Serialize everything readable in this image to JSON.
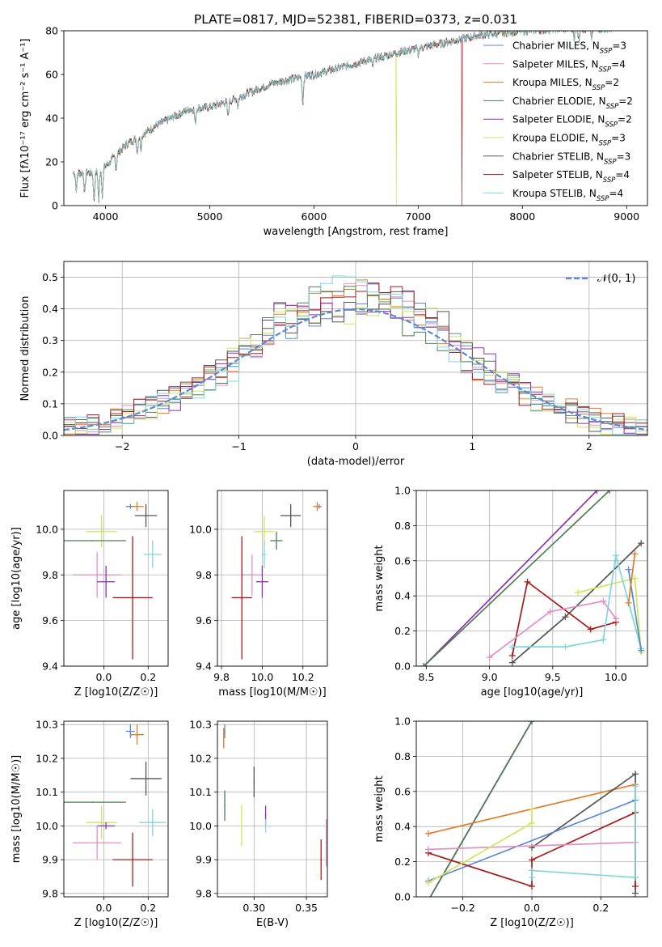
{
  "figure": {
    "title": "PLATE=0817, MJD=52381, FIBERID=0373, z=0.031"
  },
  "colors": {
    "Chabrier MILES": "#5b88d6",
    "Salpeter MILES": "#e48fc3",
    "Kroupa MILES": "#e07c28",
    "Chabrier ELODIE": "#4e7d53",
    "Salpeter ELODIE": "#8f31ac",
    "Kroupa ELODIE": "#cfe65a",
    "Chabrier STELIB": "#555555",
    "Salpeter STELIB": "#a81a1a",
    "Kroupa STELIB": "#7ed7db",
    "normal_curve": "#5b88d6"
  },
  "chart_data": [
    {
      "id": "spectrum",
      "type": "line",
      "xlabel": "wavelength [Angstrom, rest frame]",
      "ylabel": "Flux [fλ10⁻¹⁷ erg cm⁻² s⁻¹ A⁻¹]",
      "xlim": [
        3600,
        9200
      ],
      "ylim": [
        0,
        80
      ],
      "xticks": [
        4000,
        5000,
        6000,
        7000,
        8000,
        9000
      ],
      "yticks": [
        0,
        20,
        40,
        60,
        80
      ],
      "legend_position": "top-right",
      "legend": [
        {
          "series": "Chabrier MILES",
          "label": "Chabrier MILES, N_SSP=3"
        },
        {
          "series": "Salpeter MILES",
          "label": "Salpeter MILES, N_SSP=4"
        },
        {
          "series": "Kroupa MILES",
          "label": "Kroupa MILES, N_SSP=2"
        },
        {
          "series": "Chabrier ELODIE",
          "label": "Chabrier ELODIE, N_SSP=2"
        },
        {
          "series": "Salpeter ELODIE",
          "label": "Salpeter ELODIE, N_SSP=2"
        },
        {
          "series": "Kroupa ELODIE",
          "label": "Kroupa ELODIE, N_SSP=3"
        },
        {
          "series": "Chabrier STELIB",
          "label": "Chabrier STELIB, N_SSP=3"
        },
        {
          "series": "Salpeter STELIB",
          "label": "Salpeter STELIB, N_SSP=4"
        },
        {
          "series": "Kroupa STELIB",
          "label": "Kroupa STELIB, N_SSP=4"
        }
      ],
      "continuum": [
        [
          3700,
          15
        ],
        [
          3900,
          15
        ],
        [
          4000,
          18
        ],
        [
          4200,
          28
        ],
        [
          4500,
          37
        ],
        [
          4800,
          44
        ],
        [
          5000,
          45
        ],
        [
          5200,
          48
        ],
        [
          5600,
          56
        ],
        [
          6000,
          60
        ],
        [
          6400,
          65
        ],
        [
          6800,
          70
        ],
        [
          7200,
          74
        ],
        [
          7600,
          78
        ],
        [
          8000,
          80
        ],
        [
          8400,
          81
        ],
        [
          8800,
          81
        ]
      ],
      "dips": [
        [
          3720,
          8
        ],
        [
          3800,
          9
        ],
        [
          3890,
          12
        ],
        [
          3935,
          14
        ],
        [
          3970,
          12
        ],
        [
          4101,
          6
        ],
        [
          4304,
          7
        ],
        [
          4340,
          6
        ],
        [
          4861,
          7
        ],
        [
          5175,
          7
        ],
        [
          5270,
          4
        ],
        [
          5893,
          12
        ],
        [
          6563,
          4
        ],
        [
          7000,
          3
        ],
        [
          8498,
          4
        ],
        [
          8542,
          5
        ],
        [
          8662,
          5
        ]
      ],
      "spikes": [
        {
          "series": "Kroupa ELODIE",
          "x": 6790,
          "y": 0
        },
        {
          "series": "Kroupa MILES",
          "x": 6800,
          "y": 68
        },
        {
          "series": "Salpeter STELIB",
          "x": 7420,
          "y": 0
        }
      ]
    },
    {
      "id": "residuals",
      "type": "step-histogram",
      "xlabel": "(data-model)/error",
      "ylabel": "Normed distribution",
      "xlim": [
        -2.5,
        2.5
      ],
      "ylim": [
        0,
        0.55
      ],
      "xticks": [
        -2,
        -1,
        0,
        1,
        2
      ],
      "yticks": [
        0.0,
        0.1,
        0.2,
        0.3,
        0.4,
        0.5
      ],
      "bins": {
        "start": -2.5,
        "width": 0.1,
        "count": 50
      },
      "normal_label": "𝒩(0, 1)",
      "legend_position": "top-right"
    },
    {
      "id": "age_vs_Z",
      "type": "errorbar",
      "xlabel": "Z [log10(Z/Z☉)]",
      "ylabel": "age  [log10(age/yr)]",
      "xlim": [
        -0.18,
        0.29
      ],
      "ylim": [
        9.4,
        10.17
      ],
      "xticks": [
        0.0,
        0.2
      ],
      "yticks": [
        9.4,
        9.6,
        9.8,
        10.0
      ],
      "points": [
        {
          "series": "Chabrier MILES",
          "x": 0.12,
          "y": 10.1,
          "xerr": 0.02,
          "yerr": 0.01
        },
        {
          "series": "Kroupa MILES",
          "x": 0.15,
          "y": 10.1,
          "xerr": 0.03,
          "yerr": 0.02
        },
        {
          "series": "Kroupa ELODIE",
          "x": -0.01,
          "y": 9.99,
          "xerr": 0.07,
          "yerr": 0.07
        },
        {
          "series": "Chabrier ELODIE",
          "x": -0.05,
          "y": 9.95,
          "xerr": 0.15,
          "yerr": 0.0
        },
        {
          "series": "Chabrier STELIB",
          "x": 0.19,
          "y": 10.06,
          "xerr": 0.05,
          "yerr": 0.05
        },
        {
          "series": "Kroupa STELIB",
          "x": 0.22,
          "y": 9.89,
          "xerr": 0.04,
          "yerr": 0.06
        },
        {
          "series": "Salpeter MILES",
          "x": -0.03,
          "y": 9.8,
          "xerr": 0.11,
          "yerr": 0.1
        },
        {
          "series": "Salpeter ELODIE",
          "x": 0.01,
          "y": 9.77,
          "xerr": 0.04,
          "yerr": 0.07
        },
        {
          "series": "Salpeter STELIB",
          "x": 0.13,
          "y": 9.7,
          "xerr": 0.09,
          "yerr": 0.27
        }
      ]
    },
    {
      "id": "age_vs_mass",
      "type": "errorbar",
      "xlabel": "mass [log10(M/M☉)]",
      "ylabel": "",
      "xlim": [
        9.78,
        10.32
      ],
      "ylim": [
        9.4,
        10.17
      ],
      "xticks": [
        9.8,
        10.0,
        10.2
      ],
      "yticks": [
        9.4,
        9.6,
        9.8,
        10.0
      ],
      "points": [
        {
          "series": "Chabrier MILES",
          "x": 10.28,
          "y": 10.1,
          "xerr": 0.01,
          "yerr": 0.01
        },
        {
          "series": "Kroupa MILES",
          "x": 10.27,
          "y": 10.1,
          "xerr": 0.02,
          "yerr": 0.02
        },
        {
          "series": "Kroupa ELODIE",
          "x": 10.01,
          "y": 9.99,
          "xerr": 0.05,
          "yerr": 0.07
        },
        {
          "series": "Chabrier ELODIE",
          "x": 10.07,
          "y": 9.95,
          "xerr": 0.03,
          "yerr": 0.04
        },
        {
          "series": "Chabrier STELIB",
          "x": 10.14,
          "y": 10.06,
          "xerr": 0.05,
          "yerr": 0.05
        },
        {
          "series": "Kroupa STELIB",
          "x": 10.01,
          "y": 9.89,
          "xerr": 0.01,
          "yerr": 0.06
        },
        {
          "series": "Salpeter MILES",
          "x": 9.95,
          "y": 9.8,
          "xerr": 0.05,
          "yerr": 0.09
        },
        {
          "series": "Salpeter ELODIE",
          "x": 10.0,
          "y": 9.77,
          "xerr": 0.03,
          "yerr": 0.07
        },
        {
          "series": "Salpeter STELIB",
          "x": 9.9,
          "y": 9.7,
          "xerr": 0.05,
          "yerr": 0.27
        }
      ]
    },
    {
      "id": "weight_vs_age",
      "type": "line",
      "xlabel": "age  [log10(age/yr)]",
      "ylabel": "mass weight",
      "xlim": [
        8.42,
        10.25
      ],
      "ylim": [
        0,
        1
      ],
      "xticks": [
        8.5,
        9.0,
        9.5,
        10.0
      ],
      "yticks": [
        0.0,
        0.2,
        0.4,
        0.6,
        0.8,
        1.0
      ],
      "series": [
        {
          "series": "Salpeter ELODIE",
          "x": [
            8.48,
            9.85
          ],
          "y": [
            0.0,
            1.0
          ]
        },
        {
          "series": "Chabrier ELODIE",
          "x": [
            8.48,
            9.95
          ],
          "y": [
            0.0,
            1.0
          ]
        },
        {
          "series": "Chabrier STELIB",
          "x": [
            9.18,
            9.6,
            10.2
          ],
          "y": [
            0.02,
            0.28,
            0.7
          ]
        },
        {
          "series": "Salpeter STELIB",
          "x": [
            9.18,
            9.3,
            9.8,
            10.0
          ],
          "y": [
            0.06,
            0.48,
            0.21,
            0.25
          ]
        },
        {
          "series": "Salpeter MILES",
          "x": [
            9.0,
            9.48,
            9.9,
            10.0
          ],
          "y": [
            0.05,
            0.31,
            0.37,
            0.27
          ]
        },
        {
          "series": "Kroupa ELODIE",
          "x": [
            9.7,
            10.15,
            10.2
          ],
          "y": [
            0.42,
            0.5,
            0.08
          ]
        },
        {
          "series": "Kroupa STELIB",
          "x": [
            9.18,
            9.6,
            9.9,
            10.0,
            10.2
          ],
          "y": [
            0.11,
            0.11,
            0.15,
            0.63,
            0.1
          ]
        },
        {
          "series": "Chabrier MILES",
          "x": [
            10.1,
            10.2
          ],
          "y": [
            0.55,
            0.09
          ]
        },
        {
          "series": "Kroupa MILES",
          "x": [
            10.1,
            10.15
          ],
          "y": [
            0.36,
            0.64
          ]
        }
      ]
    },
    {
      "id": "mass_vs_Z",
      "type": "errorbar",
      "xlabel": "Z [log10(Z/Z☉)]",
      "ylabel": "mass [log10(M/M☉)]",
      "xlim": [
        -0.18,
        0.29
      ],
      "ylim": [
        9.79,
        10.31
      ],
      "xticks": [
        0.0,
        0.2
      ],
      "yticks": [
        9.8,
        9.9,
        10.0,
        10.1,
        10.2,
        10.3
      ],
      "points": [
        {
          "series": "Chabrier MILES",
          "x": 0.12,
          "y": 10.28,
          "xerr": 0.02,
          "yerr": 0.02
        },
        {
          "series": "Kroupa MILES",
          "x": 0.15,
          "y": 10.27,
          "xerr": 0.03,
          "yerr": 0.03
        },
        {
          "series": "Chabrier STELIB",
          "x": 0.19,
          "y": 10.14,
          "xerr": 0.07,
          "yerr": 0.05
        },
        {
          "series": "Chabrier ELODIE",
          "x": -0.05,
          "y": 10.07,
          "xerr": 0.15,
          "yerr": 0.0
        },
        {
          "series": "Kroupa STELIB",
          "x": 0.22,
          "y": 10.01,
          "xerr": 0.06,
          "yerr": 0.04
        },
        {
          "series": "Kroupa ELODIE",
          "x": -0.01,
          "y": 10.01,
          "xerr": 0.07,
          "yerr": 0.05
        },
        {
          "series": "Salpeter ELODIE",
          "x": 0.01,
          "y": 10.0,
          "xerr": 0.04,
          "yerr": 0.01
        },
        {
          "series": "Salpeter MILES",
          "x": -0.03,
          "y": 9.95,
          "xerr": 0.11,
          "yerr": 0.05
        },
        {
          "series": "Salpeter STELIB",
          "x": 0.13,
          "y": 9.9,
          "xerr": 0.09,
          "yerr": 0.08
        }
      ]
    },
    {
      "id": "mass_vs_EBV",
      "type": "errorbar",
      "xlabel": "E(B-V)",
      "ylabel": "",
      "xlim": [
        0.265,
        0.37
      ],
      "ylim": [
        9.79,
        10.31
      ],
      "xticks": [
        0.3,
        0.35
      ],
      "yticks": [
        9.8,
        9.9,
        10.0,
        10.1,
        10.2,
        10.3
      ],
      "points": [
        {
          "series": "Chabrier MILES",
          "x": 0.272,
          "y": 10.28,
          "xerr": 0.0,
          "yerr": 0.02
        },
        {
          "series": "Kroupa MILES",
          "x": 0.271,
          "y": 10.26,
          "xerr": 0.0,
          "yerr": 0.03
        },
        {
          "series": "Chabrier STELIB",
          "x": 0.3,
          "y": 10.13,
          "xerr": 0.0,
          "yerr": 0.045
        },
        {
          "series": "Chabrier ELODIE",
          "x": 0.272,
          "y": 10.06,
          "xerr": 0.0,
          "yerr": 0.045
        },
        {
          "series": "Kroupa ELODIE",
          "x": 0.288,
          "y": 10.0,
          "xerr": 0.0,
          "yerr": 0.06
        },
        {
          "series": "Salpeter ELODIE",
          "x": 0.311,
          "y": 10.03,
          "xerr": 0.0,
          "yerr": 0.03
        },
        {
          "series": "Kroupa STELIB",
          "x": 0.311,
          "y": 10.0,
          "xerr": 0.0,
          "yerr": 0.02
        },
        {
          "series": "Salpeter STELIB",
          "x": 0.364,
          "y": 9.9,
          "xerr": 0.0,
          "yerr": 0.06
        },
        {
          "series": "Salpeter MILES",
          "x": 0.369,
          "y": 9.95,
          "xerr": 0.0,
          "yerr": 0.07
        }
      ]
    },
    {
      "id": "weight_vs_Z",
      "type": "line",
      "xlabel": "Z [log10(Z/Z☉)]",
      "ylabel": "mass weight",
      "xlim": [
        -0.335,
        0.335
      ],
      "ylim": [
        0,
        1
      ],
      "xticks": [
        -0.2,
        0.0,
        0.2
      ],
      "yticks": [
        0.0,
        0.2,
        0.4,
        0.6,
        0.8,
        1.0
      ],
      "series": [
        {
          "series": "Salpeter ELODIE",
          "x": [
            -0.3,
            0.0
          ],
          "y": [
            -0.02,
            1.0
          ]
        },
        {
          "series": "Chabrier ELODIE",
          "x": [
            -0.3,
            0.0
          ],
          "y": [
            -0.02,
            1.0
          ]
        },
        {
          "series": "Kroupa MILES",
          "x": [
            -0.3,
            0.3
          ],
          "y": [
            0.36,
            0.64
          ]
        },
        {
          "series": "Chabrier STELIB",
          "x": [
            0.0,
            0.3,
            0.3
          ],
          "y": [
            0.28,
            0.7,
            0.02
          ]
        },
        {
          "series": "Chabrier MILES",
          "x": [
            -0.3,
            0.3
          ],
          "y": [
            0.09,
            0.55
          ]
        },
        {
          "series": "Salpeter STELIB",
          "x": [
            -0.3,
            0.0,
            0.0,
            0.3,
            0.3
          ],
          "y": [
            0.25,
            0.06,
            0.21,
            0.48,
            0.06
          ]
        },
        {
          "series": "Salpeter MILES",
          "x": [
            -0.3,
            0.3
          ],
          "y": [
            0.27,
            0.31
          ]
        },
        {
          "series": "Kroupa ELODIE",
          "x": [
            -0.3,
            0.0,
            0.0
          ],
          "y": [
            0.08,
            0.42,
            0.5
          ]
        },
        {
          "series": "Kroupa STELIB",
          "x": [
            0.0,
            0.0,
            0.3,
            0.3
          ],
          "y": [
            0.11,
            0.15,
            0.11,
            0.63
          ]
        }
      ]
    }
  ]
}
